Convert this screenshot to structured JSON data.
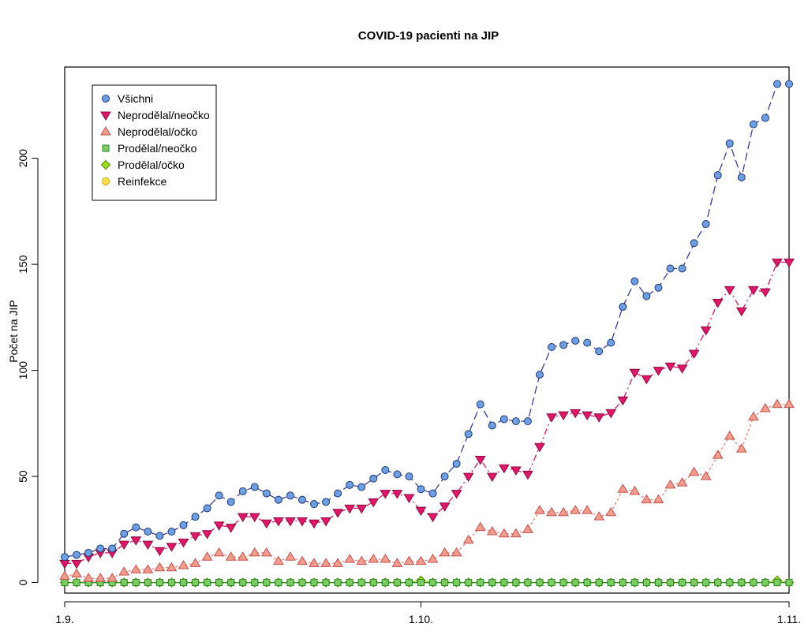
{
  "chart_data": {
    "type": "line",
    "title": "COVID-19 pacienti na JIP",
    "xlabel": "",
    "ylabel": "Počet na JIP",
    "x_tick_labels": [
      "1.9.",
      "1.10.",
      "1.11."
    ],
    "y_ticks": [
      0,
      50,
      100,
      150,
      200
    ],
    "xlim": [
      1,
      62
    ],
    "ylim": [
      -5,
      243
    ],
    "grid": false,
    "legend_position": "top-left",
    "x_day_of_period": [
      1,
      2,
      3,
      4,
      5,
      6,
      7,
      8,
      9,
      10,
      11,
      12,
      13,
      14,
      15,
      16,
      17,
      18,
      19,
      20,
      21,
      22,
      23,
      24,
      25,
      26,
      27,
      28,
      29,
      30,
      31,
      32,
      33,
      34,
      35,
      36,
      37,
      38,
      39,
      40,
      41,
      42,
      43,
      44,
      45,
      46,
      47,
      48,
      49,
      50,
      51,
      52,
      53,
      54,
      55,
      56,
      57,
      58,
      59,
      60,
      61,
      62
    ],
    "series": [
      {
        "name": "Všichni",
        "marker": "circle",
        "fill": "#6f9fe3",
        "stroke": "#1c3a7a",
        "line": "#3b3b9e",
        "dash": "10 5",
        "values": [
          12,
          13,
          14,
          16,
          16,
          23,
          26,
          24,
          22,
          24,
          27,
          31,
          35,
          41,
          38,
          43,
          45,
          42,
          39,
          41,
          39,
          37,
          38,
          42,
          46,
          45,
          49,
          53,
          51,
          50,
          44,
          42,
          50,
          56,
          70,
          84,
          74,
          77,
          76,
          76,
          98,
          111,
          112,
          114,
          113,
          109,
          113,
          130,
          142,
          135,
          139,
          148,
          148,
          160,
          169,
          192,
          207,
          191,
          216,
          219,
          235,
          235
        ]
      },
      {
        "name": "Neprodělal/neočko",
        "marker": "triangle-down",
        "fill": "#e3166a",
        "stroke": "#8a0b3d",
        "line": "#e3166a",
        "dash": "8 4 2 4",
        "values": [
          9,
          9,
          12,
          14,
          14,
          18,
          20,
          18,
          15,
          17,
          19,
          22,
          23,
          27,
          26,
          31,
          31,
          28,
          29,
          29,
          29,
          28,
          29,
          33,
          35,
          35,
          38,
          42,
          42,
          40,
          34,
          31,
          36,
          42,
          50,
          58,
          50,
          54,
          53,
          51,
          64,
          78,
          79,
          80,
          79,
          78,
          80,
          86,
          99,
          96,
          100,
          102,
          101,
          108,
          119,
          132,
          138,
          128,
          138,
          137,
          151,
          151
        ]
      },
      {
        "name": "Neprodělal/očko",
        "marker": "triangle-up",
        "fill": "#f59c8c",
        "stroke": "#c0504d",
        "line": "#f08070",
        "dash": "3 3",
        "values": [
          3,
          4,
          2,
          2,
          2,
          5,
          6,
          6,
          7,
          7,
          8,
          9,
          12,
          14,
          12,
          12,
          14,
          14,
          10,
          12,
          10,
          9,
          9,
          9,
          11,
          10,
          11,
          11,
          9,
          10,
          10,
          11,
          14,
          14,
          20,
          26,
          24,
          23,
          23,
          25,
          34,
          33,
          33,
          34,
          34,
          31,
          33,
          44,
          43,
          39,
          39,
          46,
          47,
          52,
          50,
          60,
          69,
          63,
          78,
          82,
          84,
          84
        ]
      },
      {
        "name": "Prodělal/neočko",
        "marker": "square",
        "fill": "#7ccd5f",
        "stroke": "#2e8b2e",
        "line": "#2e8b2e",
        "dash": "",
        "values": [
          0,
          0,
          0,
          0,
          0,
          0,
          0,
          0,
          0,
          0,
          0,
          0,
          0,
          0,
          0,
          0,
          0,
          0,
          0,
          0,
          0,
          0,
          0,
          0,
          0,
          0,
          0,
          0,
          0,
          0,
          0,
          0,
          0,
          0,
          0,
          0,
          0,
          0,
          0,
          0,
          0,
          0,
          0,
          0,
          0,
          0,
          0,
          0,
          0,
          0,
          0,
          0,
          0,
          0,
          0,
          0,
          0,
          0,
          0,
          0,
          0,
          0
        ]
      },
      {
        "name": "Prodělal/očko",
        "marker": "diamond",
        "fill": "#9bdc1e",
        "stroke": "#5a8a00",
        "line": "#9bdc1e",
        "dash": "",
        "values": [
          0,
          0,
          0,
          0,
          0,
          0,
          0,
          0,
          0,
          0,
          0,
          0,
          0,
          0,
          0,
          0,
          0,
          0,
          0,
          0,
          0,
          0,
          0,
          0,
          0,
          0,
          0,
          0,
          0,
          0,
          1,
          0,
          0,
          0,
          0,
          0,
          0,
          0,
          0,
          0,
          0,
          0,
          0,
          0,
          0,
          0,
          0,
          0,
          0,
          0,
          0,
          0,
          0,
          0,
          0,
          0,
          0,
          0,
          0,
          0,
          1,
          0
        ]
      },
      {
        "name": "Reinfekce",
        "marker": "circle",
        "fill": "#ffe04a",
        "stroke": "#c9a800",
        "line": "#c9a800",
        "dash": "",
        "values": [
          0,
          0,
          0,
          0,
          0,
          0,
          0,
          0,
          0,
          0,
          0,
          0,
          0,
          0,
          0,
          0,
          0,
          0,
          0,
          0,
          0,
          0,
          0,
          0,
          0,
          0,
          0,
          0,
          0,
          0,
          0,
          0,
          0,
          0,
          0,
          0,
          0,
          0,
          0,
          0,
          0,
          0,
          0,
          0,
          0,
          0,
          0,
          0,
          0,
          0,
          0,
          0,
          0,
          0,
          0,
          0,
          0,
          0,
          0,
          0,
          0,
          0
        ]
      }
    ]
  }
}
